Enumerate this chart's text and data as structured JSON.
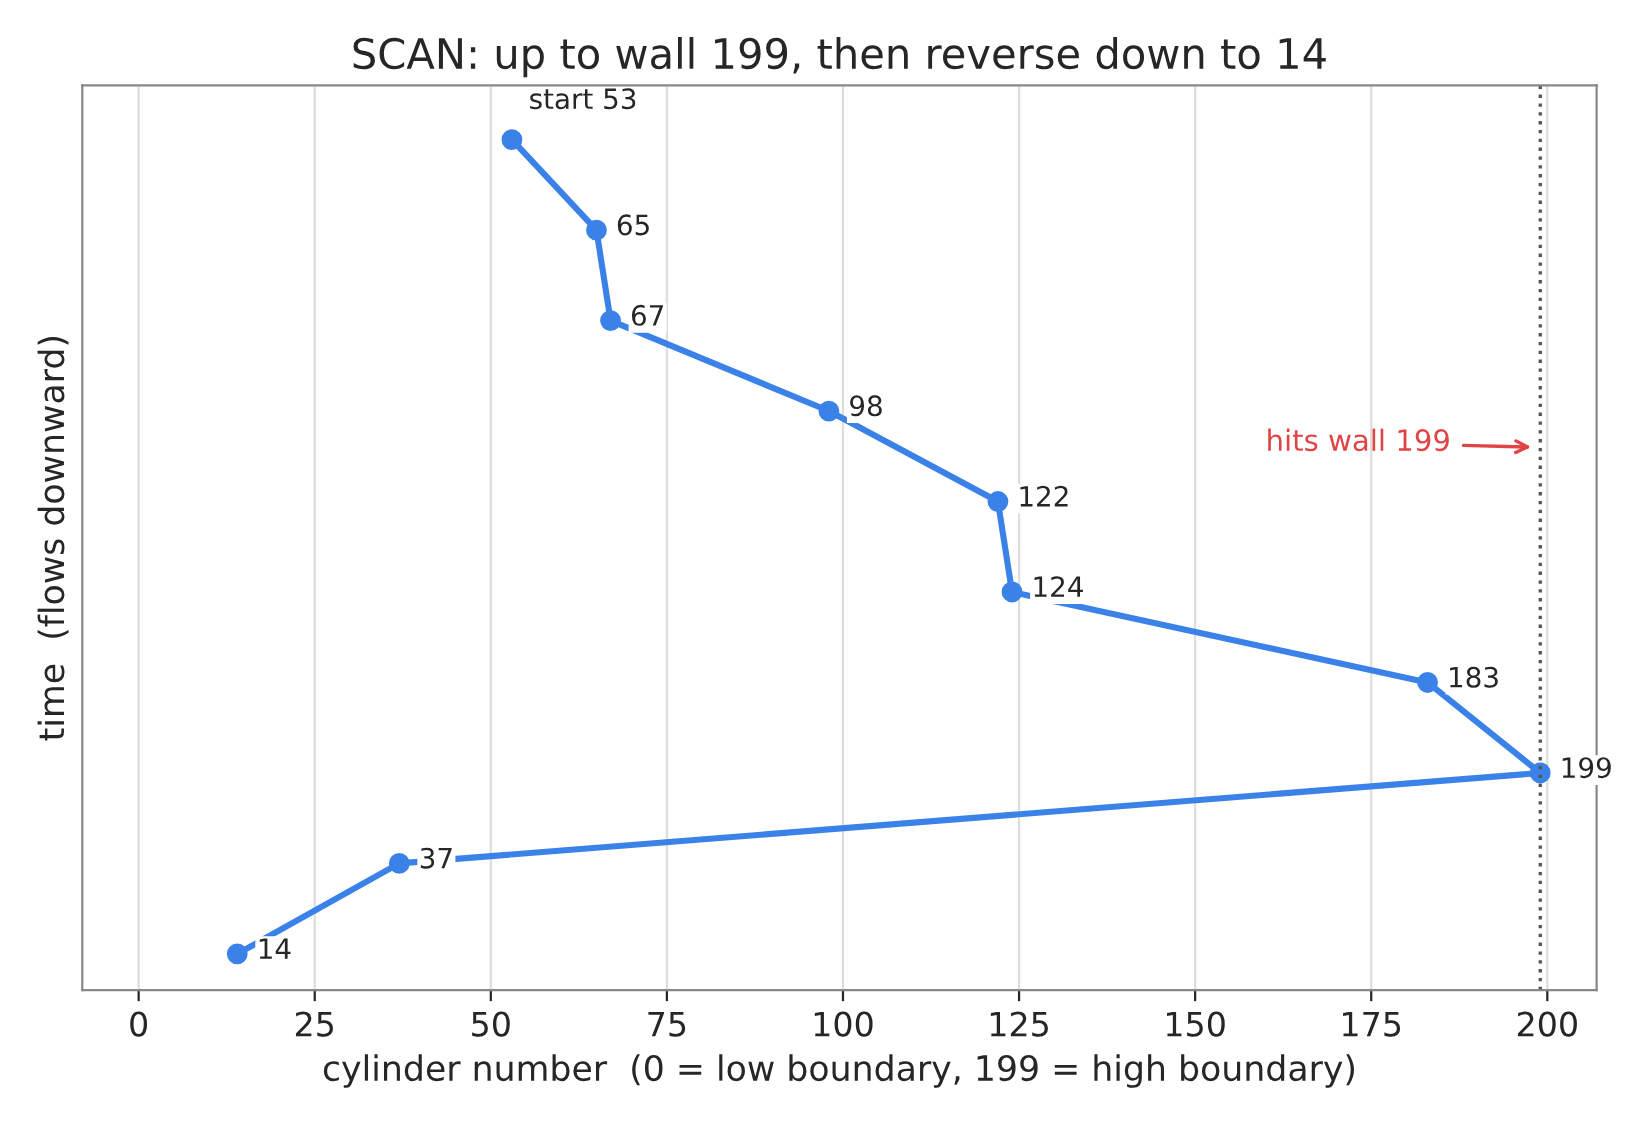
{
  "chart_data": {
    "type": "line",
    "orientation": "horizontal",
    "title": "SCAN: up to wall 199, then reverse down to 14",
    "xlabel": "cylinder number  (0 = low boundary, 199 = high boundary)",
    "ylabel": "time  (flows downward)",
    "categories": [
      null,
      null,
      null,
      null,
      null,
      null,
      null,
      null,
      null,
      null
    ],
    "series": [
      {
        "color": "#3b82e8",
        "values": [
          53,
          65,
          67,
          98,
          122,
          124,
          183,
          199,
          37,
          14
        ],
        "value_labels": [
          "start 53",
          "65",
          "67",
          "98",
          "122",
          "124",
          "183",
          "199",
          "37",
          "14"
        ]
      }
    ],
    "xlim": [
      -8,
      207
    ],
    "xticks": [
      0,
      25,
      50,
      75,
      100,
      125,
      150,
      175,
      200
    ],
    "tick_labels": "x",
    "grid": "x",
    "marker": "circle",
    "line_style": "solid",
    "ref_lines": [
      {
        "axis": "x",
        "value": 199,
        "color": "#555555",
        "line_style": "dotted"
      }
    ],
    "annotations": [
      "hits wall 199"
    ]
  }
}
